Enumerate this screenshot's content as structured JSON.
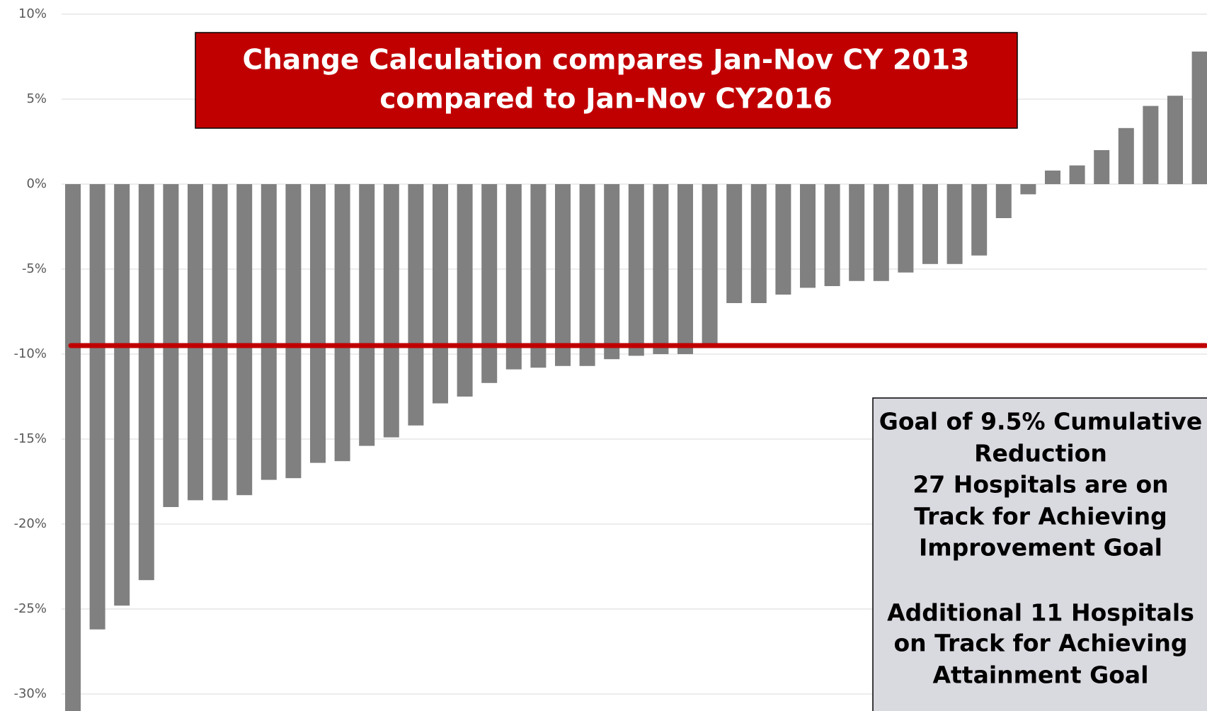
{
  "chart_data": {
    "type": "bar",
    "values": [
      -31,
      -26.2,
      -24.8,
      -23.3,
      -19.0,
      -18.6,
      -18.6,
      -18.3,
      -17.4,
      -17.3,
      -16.4,
      -16.3,
      -15.4,
      -14.9,
      -14.2,
      -12.9,
      -12.5,
      -11.7,
      -10.9,
      -10.8,
      -10.7,
      -10.7,
      -10.3,
      -10.1,
      -10.0,
      -10.0,
      -9.6,
      -7.0,
      -7.0,
      -6.5,
      -6.1,
      -6.0,
      -5.7,
      -5.7,
      -5.2,
      -4.7,
      -4.7,
      -4.2,
      -2.0,
      -0.6,
      0.8,
      1.1,
      2.0,
      3.3,
      4.6,
      5.2,
      7.8
    ],
    "color": "#808080",
    "ylim": [
      -31,
      10
    ],
    "yticks": [
      {
        "value": -30,
        "label": "-30%"
      },
      {
        "value": -25,
        "label": "-25%"
      },
      {
        "value": -20,
        "label": "-20%"
      },
      {
        "value": -15,
        "label": "-15%"
      },
      {
        "value": -10,
        "label": "-10%"
      },
      {
        "value": -5,
        "label": "-5%"
      },
      {
        "value": 0,
        "label": "0%"
      },
      {
        "value": 5,
        "label": "5%"
      },
      {
        "value": 10,
        "label": "10%"
      }
    ],
    "grid": true,
    "goal_line": {
      "value": -9.5,
      "color": "#c00000"
    },
    "title_lines": [
      "Change Calculation compares Jan-Nov CY 2013",
      "compared to Jan-Nov CY2016"
    ],
    "goal_box_lines": [
      "Goal of 9.5% Cumulative",
      "Reduction",
      "27 Hospitals are on",
      "Track for Achieving",
      "Improvement Goal",
      "Additional 11 Hospitals",
      "on Track for Achieving",
      "Attainment Goal"
    ]
  }
}
